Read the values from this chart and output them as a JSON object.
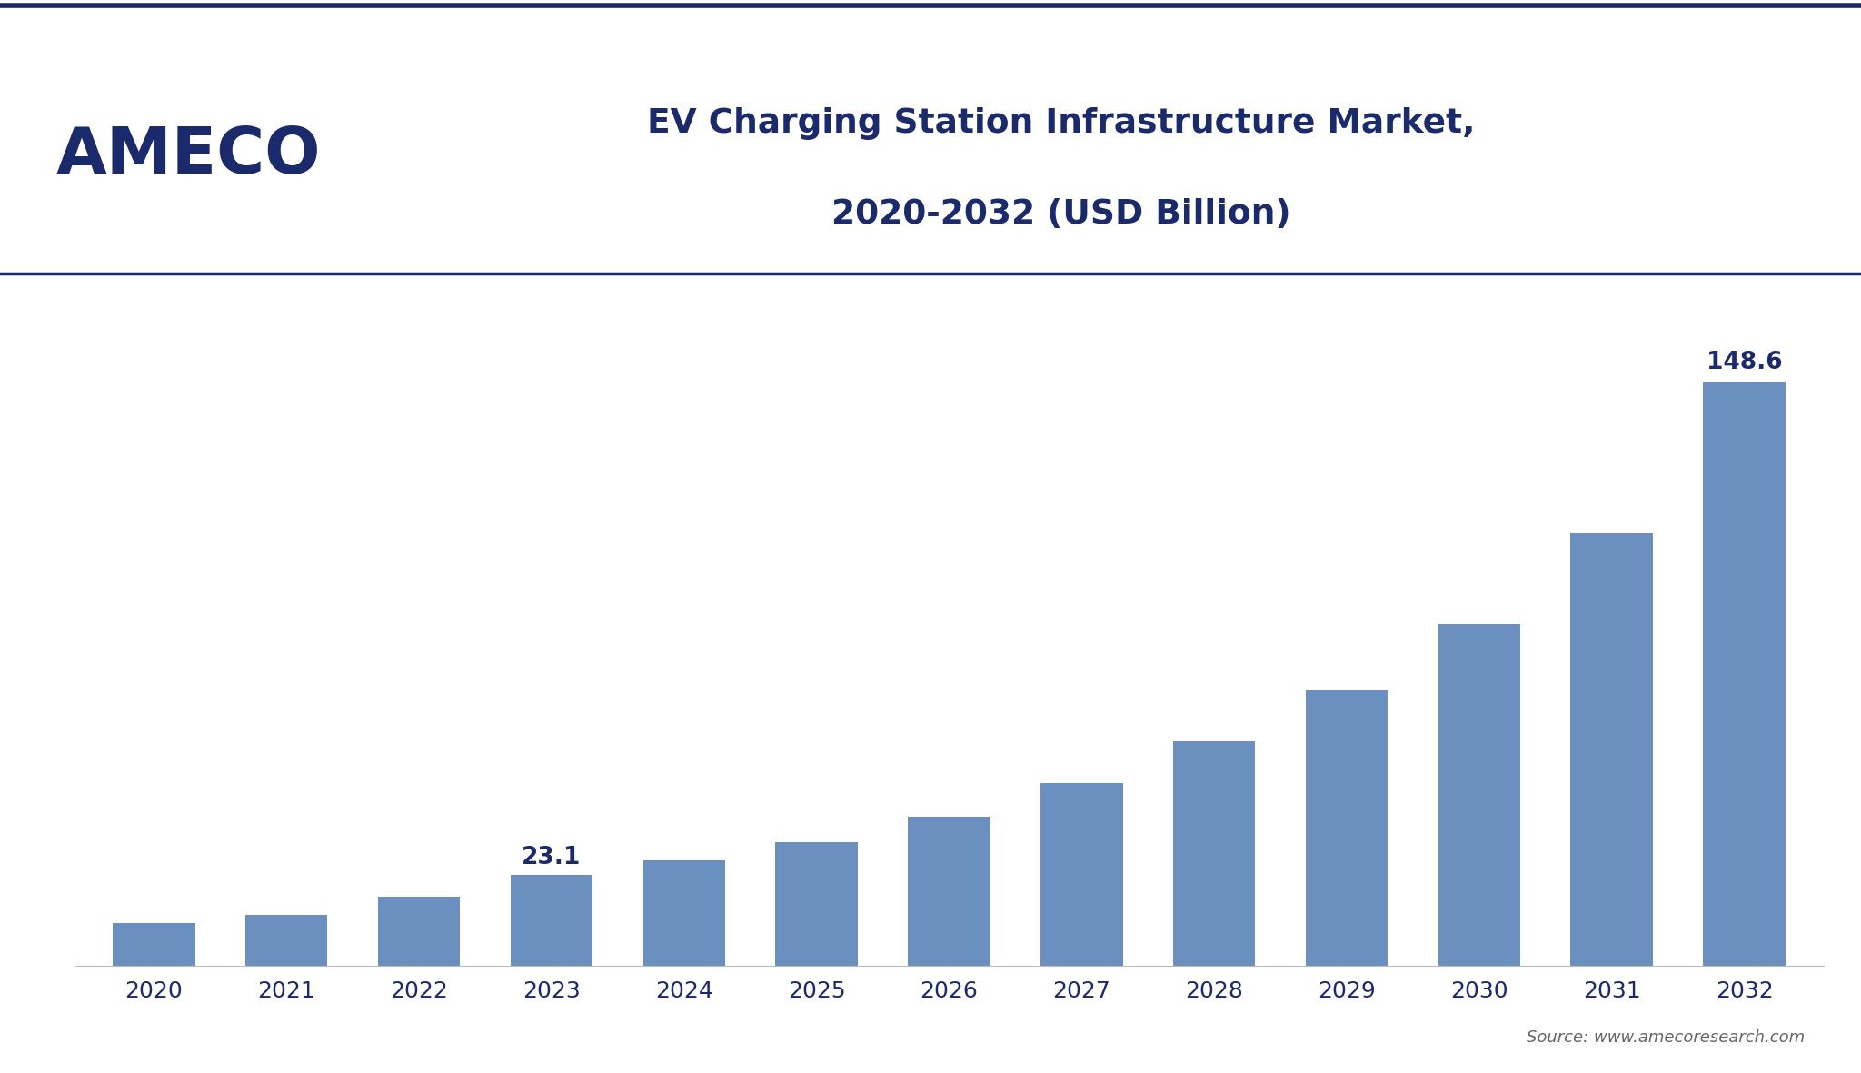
{
  "years": [
    "2020",
    "2021",
    "2022",
    "2023",
    "2024",
    "2025",
    "2026",
    "2027",
    "2028",
    "2029",
    "2030",
    "2031",
    "2032"
  ],
  "values": [
    10.9,
    13.0,
    17.5,
    23.1,
    26.8,
    31.5,
    38.0,
    46.5,
    57.0,
    70.0,
    87.0,
    110.0,
    148.6
  ],
  "bar_color": "#6B8FBF",
  "background_color": "#FFFFFF",
  "title_line1": "EV Charging Station Infrastructure Market,",
  "title_line2": "2020-2032 (USD Billion)",
  "title_color": "#1B2A6B",
  "tick_label_color": "#1B2A6B",
  "annotation_2023": "23.1",
  "annotation_2032": "148.6",
  "annotation_color": "#1B2A6B",
  "source_text": "Source: www.amecoresearch.com",
  "source_color": "#666666",
  "ameco_color": "#1B2A6B",
  "separator_color": "#1B2A6B",
  "ylim": [
    0,
    168
  ],
  "bar_width": 0.62
}
